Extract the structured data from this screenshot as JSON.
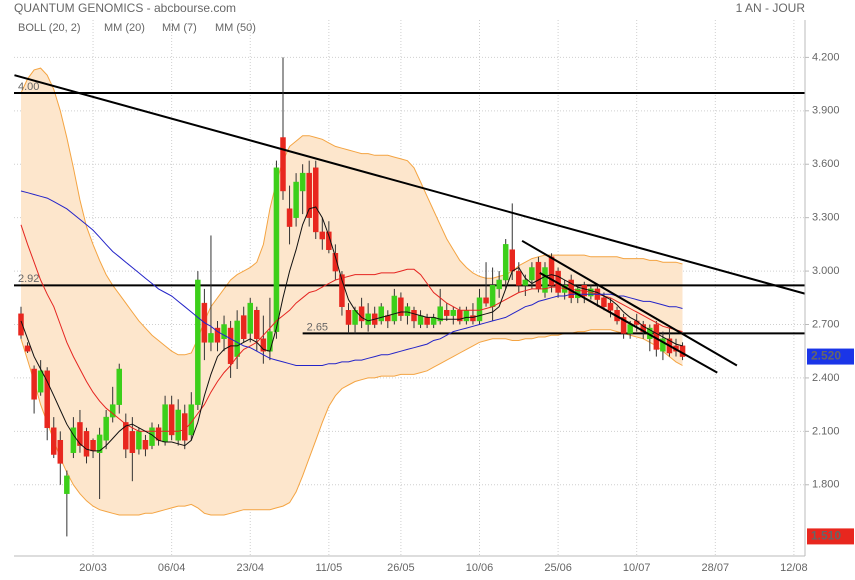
{
  "chart_data": {
    "type": "candlestick",
    "title": "QUANTUM GENOMICS - abcbourse.com",
    "period": "1 AN - JOUR",
    "categories": [
      null,
      null,
      null,
      null,
      null,
      null,
      null,
      null,
      null,
      null,
      null,
      "20/03",
      null,
      null,
      null,
      null,
      null,
      null,
      null,
      null,
      null,
      null,
      null,
      "06/04",
      null,
      null,
      null,
      null,
      null,
      null,
      null,
      null,
      null,
      null,
      null,
      "23/04",
      null,
      null,
      null,
      null,
      null,
      null,
      null,
      null,
      null,
      null,
      null,
      "11/05",
      null,
      null,
      null,
      null,
      null,
      null,
      null,
      null,
      null,
      null,
      "26/05",
      null,
      null,
      null,
      null,
      null,
      null,
      null,
      null,
      null,
      null,
      null,
      "10/06",
      null,
      null,
      null,
      null,
      null,
      null,
      null,
      null,
      null,
      null,
      null,
      "25/06",
      null,
      null,
      null,
      null,
      null,
      null,
      null,
      null,
      null,
      null,
      null,
      "10/07",
      null,
      null,
      null,
      null,
      null,
      null,
      null,
      null,
      null,
      null,
      null,
      "28/07",
      null,
      null,
      null,
      null,
      null,
      null,
      null,
      null,
      null,
      null,
      null,
      "12/08",
      null,
      null
    ],
    "open": [
      2.76,
      2.58,
      2.45,
      2.32,
      2.44,
      2.12,
      2.05,
      1.75,
      1.98,
      2.15,
      2.1,
      2.05,
      1.98,
      2.05,
      2.18,
      2.25,
      2.15,
      2.1,
      2.0,
      2.05,
      2.02,
      2.12,
      2.04,
      2.25,
      2.05,
      2.2,
      2.08,
      2.25,
      2.82,
      2.6,
      2.68,
      2.62,
      2.68,
      2.52,
      2.75,
      2.65,
      2.78,
      2.62,
      2.55,
      2.66,
      3.75,
      3.35,
      3.3,
      3.45,
      3.55,
      3.58,
      3.22,
      3.22,
      3.1,
      2.98,
      2.78,
      2.7,
      2.8,
      2.7,
      2.76,
      2.72,
      2.75,
      2.72,
      2.85,
      2.75,
      2.78,
      2.7,
      2.74,
      2.7,
      2.72,
      2.78,
      2.75,
      2.78,
      2.72,
      2.75,
      2.72,
      2.85,
      2.8,
      2.9,
      2.95,
      3.12,
      3.0,
      2.92,
      2.95,
      3.05,
      2.88,
      3.08,
      3.0,
      2.88,
      2.95,
      2.85,
      2.92,
      2.86,
      2.9,
      2.85,
      2.82,
      2.78,
      2.74,
      2.65,
      2.72,
      2.7,
      2.62,
      2.7,
      2.55,
      2.62,
      2.58,
      2.58,
      null,
      null,
      null,
      null,
      null,
      null,
      null,
      null,
      null,
      null,
      null,
      null,
      null,
      null,
      null,
      null,
      null,
      null,
      null
    ],
    "high": [
      2.8,
      2.6,
      2.47,
      2.5,
      2.46,
      2.18,
      2.1,
      1.88,
      2.18,
      2.22,
      2.12,
      2.06,
      2.12,
      2.22,
      2.35,
      2.48,
      2.2,
      2.18,
      2.12,
      2.08,
      2.15,
      2.14,
      2.3,
      2.3,
      2.28,
      2.25,
      2.32,
      3.0,
      2.9,
      3.2,
      2.72,
      2.75,
      2.72,
      2.78,
      2.8,
      2.85,
      2.8,
      2.75,
      2.85,
      3.62,
      4.2,
      3.48,
      3.55,
      3.6,
      3.62,
      3.62,
      3.3,
      3.28,
      3.15,
      3.0,
      2.82,
      2.8,
      2.85,
      2.82,
      2.8,
      2.82,
      2.78,
      2.9,
      2.88,
      2.82,
      2.8,
      2.78,
      2.76,
      2.76,
      2.9,
      2.82,
      2.8,
      2.8,
      2.8,
      2.82,
      2.9,
      3.05,
      3.02,
      3.0,
      3.18,
      3.38,
      3.05,
      2.98,
      3.05,
      3.08,
      3.05,
      3.1,
      3.02,
      2.95,
      2.98,
      2.92,
      2.94,
      2.92,
      2.92,
      2.88,
      2.85,
      2.8,
      2.76,
      2.72,
      2.76,
      2.72,
      2.7,
      2.72,
      2.66,
      2.68,
      2.62,
      2.6,
      null,
      null,
      null,
      null,
      null,
      null,
      null,
      null,
      null,
      null,
      null,
      null,
      null,
      null,
      null,
      null,
      null,
      null,
      null
    ],
    "low": [
      2.62,
      2.54,
      2.2,
      2.3,
      2.05,
      1.95,
      1.8,
      1.51,
      1.95,
      1.98,
      1.92,
      1.95,
      1.72,
      2.0,
      2.15,
      2.2,
      1.95,
      1.82,
      1.97,
      1.96,
      2.0,
      2.02,
      2.02,
      2.05,
      2.02,
      2.0,
      2.05,
      2.22,
      2.5,
      2.55,
      2.55,
      2.55,
      2.4,
      2.45,
      2.6,
      2.6,
      2.55,
      2.48,
      2.5,
      2.62,
      3.4,
      3.15,
      3.25,
      3.32,
      3.25,
      3.18,
      3.12,
      3.1,
      2.95,
      2.75,
      2.65,
      2.65,
      2.68,
      2.66,
      2.68,
      2.7,
      2.68,
      2.7,
      2.72,
      2.7,
      2.68,
      2.68,
      2.68,
      2.68,
      2.7,
      2.72,
      2.7,
      2.7,
      2.7,
      2.7,
      2.7,
      2.8,
      2.72,
      2.85,
      2.9,
      2.95,
      2.88,
      2.86,
      2.9,
      2.88,
      2.85,
      2.88,
      2.85,
      2.84,
      2.82,
      2.82,
      2.82,
      2.84,
      2.8,
      2.78,
      2.74,
      2.7,
      2.62,
      2.62,
      2.66,
      2.62,
      2.55,
      2.52,
      2.5,
      2.52,
      2.52,
      2.5,
      null,
      null,
      null,
      null,
      null,
      null,
      null,
      null,
      null,
      null,
      null,
      null,
      null,
      null,
      null,
      null,
      null,
      null,
      null
    ],
    "close": [
      2.64,
      2.55,
      2.28,
      2.44,
      2.12,
      1.97,
      1.92,
      1.85,
      2.12,
      2.02,
      1.96,
      1.99,
      2.08,
      2.18,
      2.25,
      2.45,
      2.0,
      1.98,
      2.1,
      2.0,
      2.12,
      2.05,
      2.25,
      2.08,
      2.22,
      2.05,
      2.25,
      2.95,
      2.6,
      2.65,
      2.6,
      2.7,
      2.48,
      2.72,
      2.62,
      2.82,
      2.62,
      2.55,
      2.66,
      3.58,
      3.45,
      3.25,
      3.5,
      3.55,
      3.3,
      3.22,
      3.18,
      3.12,
      3.0,
      2.8,
      2.7,
      2.78,
      2.72,
      2.76,
      2.7,
      2.8,
      2.72,
      2.86,
      2.75,
      2.8,
      2.72,
      2.75,
      2.7,
      2.74,
      2.8,
      2.75,
      2.78,
      2.72,
      2.78,
      2.72,
      2.85,
      2.82,
      2.92,
      2.95,
      3.15,
      3.0,
      2.92,
      2.95,
      3.02,
      2.9,
      3.02,
      2.92,
      2.88,
      2.92,
      2.85,
      2.9,
      2.86,
      2.9,
      2.84,
      2.8,
      2.78,
      2.72,
      2.65,
      2.7,
      2.7,
      2.66,
      2.68,
      2.56,
      2.62,
      2.54,
      2.55,
      2.52,
      null,
      null,
      null,
      null,
      null,
      null,
      null,
      null,
      null,
      null,
      null,
      null,
      null,
      null,
      null,
      null,
      null,
      null,
      null
    ],
    "up_color": "#3ccf1a",
    "down_color": "#e8271e",
    "overlays": [
      {
        "type": "band",
        "name": "BOLL (20, 2)",
        "color": "#f4a442",
        "fill": "#fde6cc",
        "upper": [
          4.0,
          4.08,
          4.13,
          4.14,
          4.1,
          4.02,
          3.9,
          3.75,
          3.58,
          3.4,
          3.25,
          3.15,
          3.06,
          2.98,
          2.92,
          2.87,
          2.82,
          2.77,
          2.72,
          2.68,
          2.64,
          2.61,
          2.58,
          2.55,
          2.53,
          2.53,
          2.54,
          2.62,
          2.72,
          2.8,
          2.85,
          2.9,
          2.95,
          2.98,
          3.0,
          3.02,
          3.05,
          3.15,
          3.35,
          3.5,
          3.62,
          3.7,
          3.73,
          3.76,
          3.76,
          3.75,
          3.74,
          3.72,
          3.7,
          3.69,
          3.68,
          3.67,
          3.66,
          3.66,
          3.65,
          3.65,
          3.65,
          3.64,
          3.63,
          3.62,
          3.58,
          3.5,
          3.42,
          3.34,
          3.26,
          3.18,
          3.12,
          3.06,
          3.02,
          2.99,
          2.97,
          2.96,
          2.96,
          2.97,
          2.98,
          3.0,
          3.03,
          3.05,
          3.07,
          3.08,
          3.09,
          3.09,
          3.09,
          3.09,
          3.09,
          3.09,
          3.09,
          3.08,
          3.08,
          3.08,
          3.08,
          3.08,
          3.07,
          3.07,
          3.07,
          3.07,
          3.06,
          3.06,
          3.05,
          3.05,
          3.05,
          3.04,
          null,
          null,
          null,
          null,
          null,
          null,
          null,
          null,
          null,
          null,
          null,
          null,
          null,
          null,
          null,
          null,
          null,
          null,
          null
        ],
        "lower": [
          2.62,
          2.5,
          2.38,
          2.25,
          2.15,
          2.05,
          1.95,
          1.87,
          1.8,
          1.75,
          1.71,
          1.68,
          1.66,
          1.65,
          1.64,
          1.63,
          1.63,
          1.63,
          1.63,
          1.64,
          1.64,
          1.65,
          1.66,
          1.67,
          1.68,
          1.68,
          1.69,
          1.67,
          1.64,
          1.63,
          1.63,
          1.63,
          1.64,
          1.65,
          1.66,
          1.66,
          1.66,
          1.66,
          1.66,
          1.67,
          1.68,
          1.7,
          1.76,
          1.85,
          1.95,
          2.05,
          2.15,
          2.24,
          2.3,
          2.34,
          2.36,
          2.38,
          2.39,
          2.4,
          2.4,
          2.41,
          2.41,
          2.41,
          2.42,
          2.42,
          2.42,
          2.43,
          2.44,
          2.46,
          2.48,
          2.5,
          2.52,
          2.54,
          2.56,
          2.58,
          2.6,
          2.61,
          2.62,
          2.62,
          2.62,
          2.61,
          2.61,
          2.62,
          2.62,
          2.63,
          2.63,
          2.64,
          2.64,
          2.65,
          2.65,
          2.66,
          2.66,
          2.67,
          2.67,
          2.67,
          2.67,
          2.66,
          2.65,
          2.64,
          2.63,
          2.62,
          2.6,
          2.58,
          2.55,
          2.52,
          2.49,
          2.47,
          null,
          null,
          null,
          null,
          null,
          null,
          null,
          null,
          null,
          null,
          null,
          null,
          null,
          null,
          null,
          null,
          null,
          null,
          null
        ]
      },
      {
        "type": "line",
        "name": "MM (20)",
        "color": "#e52521",
        "values": [
          3.26,
          3.15,
          3.05,
          2.95,
          2.87,
          2.8,
          2.7,
          2.6,
          2.52,
          2.45,
          2.38,
          2.32,
          2.27,
          2.23,
          2.2,
          2.17,
          2.14,
          2.12,
          2.1,
          2.1,
          2.1,
          2.1,
          2.1,
          2.1,
          2.1,
          2.11,
          2.15,
          2.2,
          2.25,
          2.32,
          2.38,
          2.43,
          2.47,
          2.52,
          2.56,
          2.58,
          2.6,
          2.64,
          2.68,
          2.72,
          2.75,
          2.78,
          2.82,
          2.85,
          2.88,
          2.89,
          2.91,
          2.93,
          2.95,
          2.96,
          2.97,
          2.98,
          2.98,
          2.98,
          2.98,
          2.99,
          2.99,
          2.99,
          3.0,
          3.01,
          3.01,
          2.98,
          2.93,
          2.88,
          2.85,
          2.82,
          2.8,
          2.78,
          2.78,
          2.78,
          2.78,
          2.79,
          2.8,
          2.82,
          2.84,
          2.86,
          2.88,
          2.89,
          2.9,
          2.9,
          2.9,
          2.91,
          2.91,
          2.9,
          2.9,
          2.89,
          2.89,
          2.88,
          2.87,
          2.86,
          2.85,
          2.83,
          2.81,
          2.79,
          2.77,
          2.75,
          2.73,
          2.71,
          2.69,
          2.68,
          2.67,
          2.66,
          null,
          null,
          null,
          null,
          null,
          null,
          null,
          null,
          null,
          null,
          null,
          null,
          null,
          null,
          null,
          null,
          null,
          null,
          null
        ]
      },
      {
        "type": "line",
        "name": "MM (7)",
        "color": "#111111",
        "values": [
          2.72,
          2.62,
          2.52,
          2.45,
          2.38,
          2.3,
          2.22,
          2.14,
          2.08,
          2.03,
          2.0,
          1.99,
          1.99,
          2.02,
          2.06,
          2.1,
          2.13,
          2.14,
          2.12,
          2.1,
          2.08,
          2.05,
          2.04,
          2.04,
          2.03,
          2.02,
          2.05,
          2.15,
          2.3,
          2.42,
          2.52,
          2.56,
          2.58,
          2.58,
          2.6,
          2.62,
          2.6,
          2.56,
          2.55,
          2.68,
          2.85,
          3.0,
          3.12,
          3.26,
          3.35,
          3.36,
          3.3,
          3.2,
          3.08,
          2.95,
          2.84,
          2.78,
          2.74,
          2.72,
          2.73,
          2.74,
          2.75,
          2.76,
          2.77,
          2.77,
          2.76,
          2.75,
          2.74,
          2.74,
          2.73,
          2.73,
          2.73,
          2.73,
          2.74,
          2.74,
          2.75,
          2.76,
          2.77,
          2.8,
          2.9,
          3.0,
          3.02,
          2.96,
          2.93,
          2.95,
          2.97,
          2.98,
          2.97,
          2.95,
          2.93,
          2.91,
          2.9,
          2.89,
          2.88,
          2.86,
          2.84,
          2.81,
          2.77,
          2.74,
          2.72,
          2.69,
          2.67,
          2.65,
          2.63,
          2.61,
          2.59,
          2.58,
          null,
          null,
          null,
          null,
          null,
          null,
          null,
          null,
          null,
          null,
          null,
          null,
          null,
          null,
          null,
          null,
          null,
          null,
          null
        ]
      },
      {
        "type": "line",
        "name": "MM (50)",
        "color": "#2424c8",
        "values": [
          3.45,
          3.44,
          3.43,
          3.42,
          3.41,
          3.39,
          3.37,
          3.35,
          3.32,
          3.29,
          3.26,
          3.23,
          3.19,
          3.15,
          3.11,
          3.08,
          3.05,
          3.02,
          2.99,
          2.96,
          2.93,
          2.9,
          2.88,
          2.86,
          2.83,
          2.8,
          2.77,
          2.74,
          2.71,
          2.69,
          2.66,
          2.64,
          2.62,
          2.6,
          2.58,
          2.57,
          2.55,
          2.53,
          2.51,
          2.5,
          2.49,
          2.48,
          2.47,
          2.47,
          2.47,
          2.47,
          2.47,
          2.48,
          2.48,
          2.49,
          2.49,
          2.5,
          2.5,
          2.51,
          2.52,
          2.53,
          2.53,
          2.54,
          2.55,
          2.56,
          2.57,
          2.58,
          2.59,
          2.61,
          2.62,
          2.64,
          2.66,
          2.67,
          2.68,
          2.69,
          2.7,
          2.71,
          2.72,
          2.73,
          2.74,
          2.76,
          2.78,
          2.8,
          2.81,
          2.83,
          2.84,
          2.85,
          2.86,
          2.86,
          2.87,
          2.87,
          2.87,
          2.87,
          2.87,
          2.87,
          2.87,
          2.86,
          2.86,
          2.85,
          2.84,
          2.83,
          2.83,
          2.82,
          2.81,
          2.8,
          2.8,
          2.79,
          null,
          null,
          null,
          null,
          null,
          null,
          null,
          null,
          null,
          null,
          null,
          null,
          null,
          null,
          null,
          null,
          null,
          null,
          null
        ]
      }
    ],
    "ylim": [
      1.4,
      4.41
    ],
    "yticks": [
      {
        "value": 1.8,
        "label": "1.800"
      },
      {
        "value": 2.1,
        "label": "2.100"
      },
      {
        "value": 2.4,
        "label": "2.400"
      },
      {
        "value": 2.7,
        "label": "2.700"
      },
      {
        "value": 3.0,
        "label": "3.000"
      },
      {
        "value": 3.3,
        "label": "3.300"
      },
      {
        "value": 3.6,
        "label": "3.600"
      },
      {
        "value": 3.9,
        "label": "3.900"
      },
      {
        "value": 4.2,
        "label": "4.200"
      }
    ],
    "grid": true,
    "hlines": [
      {
        "value": 4,
        "label": "4.00"
      },
      {
        "value": 2.92,
        "label": "2.92"
      },
      {
        "value": 2.65,
        "label": "2.65",
        "from": 43
      }
    ],
    "trendlines": [
      {
        "x": [
          -1,
          120
        ],
        "y": [
          4.1,
          2.87
        ]
      },
      {
        "x": [
          76.5,
          109.3
        ],
        "y": [
          3.17,
          2.47
        ]
      },
      {
        "x": [
          79.2,
          106.3
        ],
        "y": [
          2.99,
          2.43
        ]
      }
    ],
    "last": {
      "value": 2.52,
      "label": "2.520",
      "color": "#1a35e8"
    },
    "low_mark": {
      "value": 1.51,
      "label": "1.510",
      "color": "#e8271e"
    }
  }
}
